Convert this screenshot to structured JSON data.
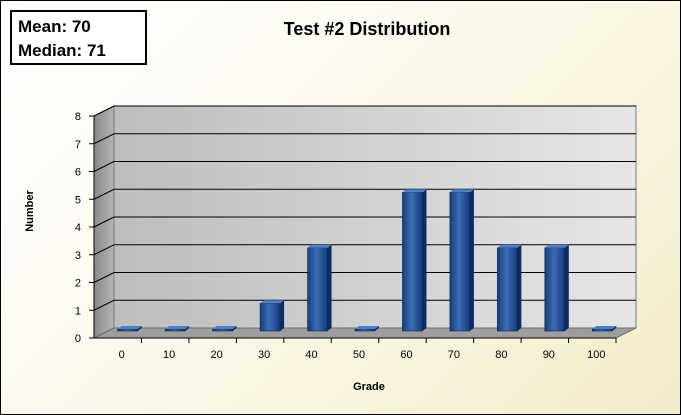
{
  "stats": {
    "mean": "Mean: 70",
    "median": "Median: 71"
  },
  "chart_data": {
    "type": "bar",
    "title": "Test #2 Distribution",
    "xlabel": "Grade",
    "ylabel": "Number",
    "categories": [
      "0",
      "10",
      "20",
      "30",
      "40",
      "50",
      "60",
      "70",
      "80",
      "90",
      "100"
    ],
    "values": [
      0,
      0,
      0,
      1,
      3,
      0,
      5,
      5,
      3,
      3,
      0
    ],
    "ylim": [
      0,
      8
    ],
    "yticks": [
      0,
      1,
      2,
      3,
      4,
      5,
      6,
      7,
      8
    ],
    "grid": true,
    "legend": "none",
    "style": "3d-column"
  },
  "colors": {
    "bar_front": "#1f4e93",
    "bar_side": "#0d2c63",
    "bar_top": "#4f7fc4",
    "wall": "#d6d6d6",
    "floor": "#9e9e9e"
  }
}
